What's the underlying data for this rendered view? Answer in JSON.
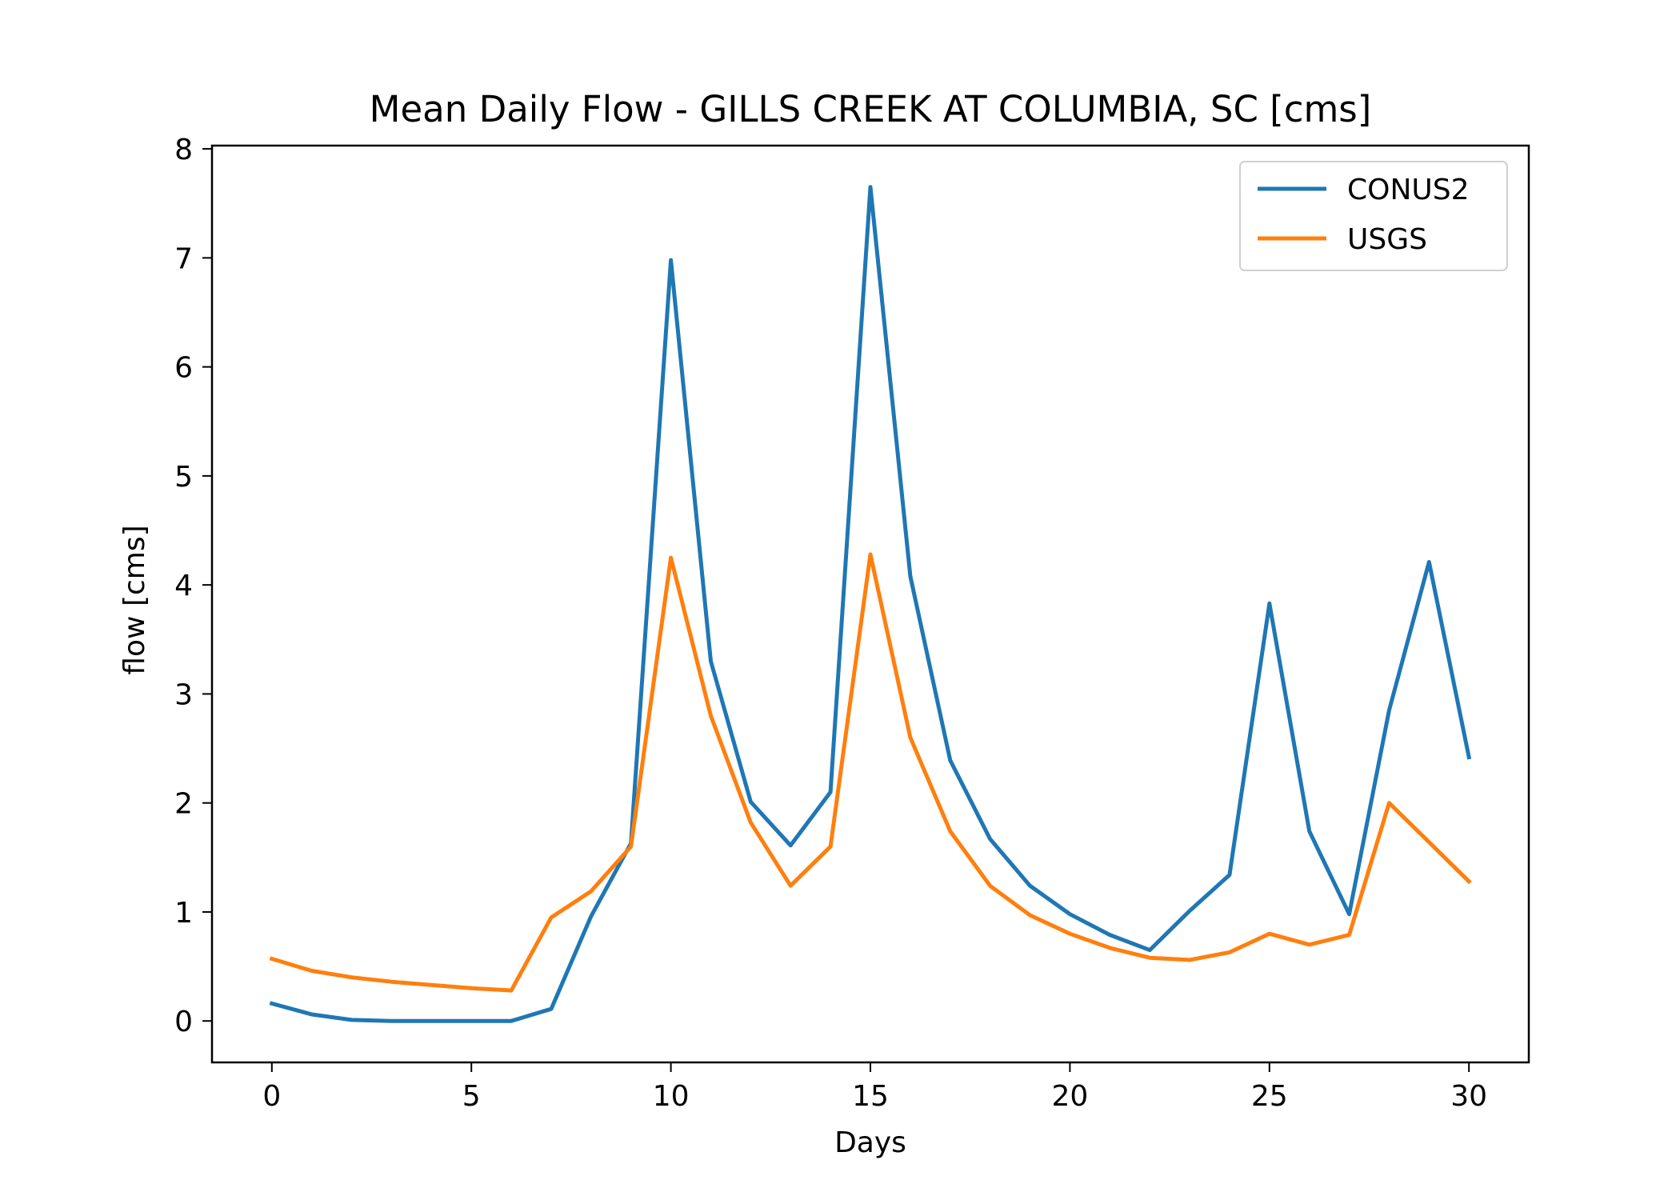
{
  "chart_data": {
    "type": "line",
    "title": "Mean Daily Flow - GILLS CREEK AT COLUMBIA, SC [cms]",
    "xlabel": "Days",
    "ylabel": "flow [cms]",
    "xlim": [
      -1.5,
      31.5
    ],
    "ylim": [
      -0.38,
      8.03
    ],
    "xticks": [
      0,
      5,
      10,
      15,
      20,
      25,
      30
    ],
    "yticks": [
      0,
      1,
      2,
      3,
      4,
      5,
      6,
      7,
      8
    ],
    "grid": false,
    "legend_position": "top-right",
    "x": [
      0,
      1,
      2,
      3,
      4,
      5,
      6,
      7,
      8,
      9,
      10,
      11,
      12,
      13,
      14,
      15,
      16,
      17,
      18,
      19,
      20,
      21,
      22,
      23,
      24,
      25,
      26,
      27,
      28,
      29,
      30
    ],
    "series": [
      {
        "name": "CONUS2",
        "color": "#1f77b4",
        "values": [
          0.16,
          0.06,
          0.01,
          0.0,
          0.0,
          0.0,
          0.0,
          0.11,
          0.96,
          1.63,
          6.98,
          3.3,
          2.01,
          1.61,
          2.1,
          7.65,
          4.08,
          2.39,
          1.67,
          1.24,
          0.98,
          0.79,
          0.65,
          1.01,
          1.34,
          3.83,
          1.74,
          0.98,
          2.85,
          4.21,
          2.42
        ]
      },
      {
        "name": "USGS",
        "color": "#ff7f0e",
        "values": [
          0.57,
          0.46,
          0.4,
          0.36,
          0.33,
          0.3,
          0.28,
          0.95,
          1.19,
          1.6,
          4.25,
          2.8,
          1.82,
          1.24,
          1.6,
          4.28,
          2.6,
          1.74,
          1.24,
          0.97,
          0.8,
          0.67,
          0.58,
          0.56,
          0.63,
          0.8,
          0.7,
          0.79,
          2.0,
          1.64,
          1.28
        ]
      }
    ]
  }
}
